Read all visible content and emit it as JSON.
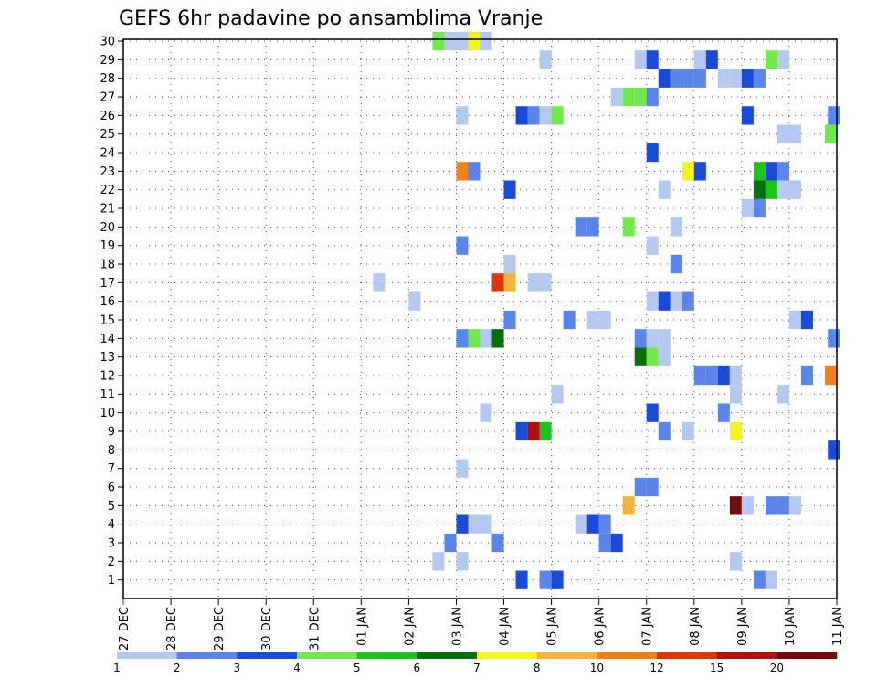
{
  "chart_data": {
    "type": "heatmap",
    "title": "GEFS 6hr padavine po ansamblima Vranje",
    "x_labels": [
      "27 DEC",
      "28 DEC",
      "29 DEC",
      "30 DEC",
      "31 DEC",
      "01 JAN",
      "02 JAN",
      "03 JAN",
      "04 JAN",
      "05 JAN",
      "06 JAN",
      "07 JAN",
      "08 JAN",
      "09 JAN",
      "10 JAN",
      "11 JAN"
    ],
    "y_labels": [
      "1",
      "2",
      "3",
      "4",
      "5",
      "6",
      "7",
      "8",
      "9",
      "10",
      "11",
      "12",
      "13",
      "14",
      "15",
      "16",
      "17",
      "18",
      "19",
      "20",
      "21",
      "22",
      "23",
      "24",
      "25",
      "26",
      "27",
      "28",
      "29",
      "30"
    ],
    "xlim": [
      0,
      60
    ],
    "ylim": [
      0,
      30
    ],
    "grid": true,
    "colorbar": {
      "labels": [
        "1",
        "2",
        "3",
        "4",
        "5",
        "6",
        "7",
        "8",
        "10",
        "12",
        "15",
        "20"
      ],
      "colors": [
        "#b5c8f0",
        "#5a85ea",
        "#1a4ad8",
        "#72e84c",
        "#1cc41c",
        "#0a6e0a",
        "#f5f51a",
        "#f5b43c",
        "#f58012",
        "#e0340e",
        "#b41010",
        "#780a0a"
      ]
    },
    "cells": [
      {
        "t": 26.5,
        "m": 30,
        "c": "#72e84c"
      },
      {
        "t": 27.5,
        "m": 30,
        "c": "#b5c8f0"
      },
      {
        "t": 28.5,
        "m": 30,
        "c": "#b5c8f0"
      },
      {
        "t": 29.5,
        "m": 30,
        "c": "#f5f51a"
      },
      {
        "t": 30.5,
        "m": 30,
        "c": "#b5c8f0"
      },
      {
        "t": 35.5,
        "m": 29,
        "c": "#b5c8f0"
      },
      {
        "t": 43.5,
        "m": 29,
        "c": "#b5c8f0"
      },
      {
        "t": 44.5,
        "m": 29,
        "c": "#1a4ad8"
      },
      {
        "t": 48.5,
        "m": 29,
        "c": "#b5c8f0"
      },
      {
        "t": 49.5,
        "m": 29,
        "c": "#1a4ad8"
      },
      {
        "t": 54.5,
        "m": 29,
        "c": "#72e84c"
      },
      {
        "t": 55.5,
        "m": 29,
        "c": "#b5c8f0"
      },
      {
        "t": 45.5,
        "m": 28,
        "c": "#1a4ad8"
      },
      {
        "t": 46.5,
        "m": 28,
        "c": "#5a85ea"
      },
      {
        "t": 47.5,
        "m": 28,
        "c": "#5a85ea"
      },
      {
        "t": 48.5,
        "m": 28,
        "c": "#5a85ea"
      },
      {
        "t": 50.5,
        "m": 28,
        "c": "#b5c8f0"
      },
      {
        "t": 51.5,
        "m": 28,
        "c": "#b5c8f0"
      },
      {
        "t": 52.5,
        "m": 28,
        "c": "#1a4ad8"
      },
      {
        "t": 53.5,
        "m": 28,
        "c": "#5a85ea"
      },
      {
        "t": 41.5,
        "m": 27,
        "c": "#b5c8f0"
      },
      {
        "t": 42.5,
        "m": 27,
        "c": "#72e84c"
      },
      {
        "t": 43.5,
        "m": 27,
        "c": "#72e84c"
      },
      {
        "t": 44.5,
        "m": 27,
        "c": "#5a85ea"
      },
      {
        "t": 28.5,
        "m": 26,
        "c": "#b5c8f0"
      },
      {
        "t": 33.5,
        "m": 26,
        "c": "#1a4ad8"
      },
      {
        "t": 34.5,
        "m": 26,
        "c": "#5a85ea"
      },
      {
        "t": 35.5,
        "m": 26,
        "c": "#b5c8f0"
      },
      {
        "t": 36.5,
        "m": 26,
        "c": "#72e84c"
      },
      {
        "t": 52.5,
        "m": 26,
        "c": "#1a4ad8"
      },
      {
        "t": 59.75,
        "m": 26,
        "c": "#5a85ea"
      },
      {
        "t": 55.5,
        "m": 25,
        "c": "#b5c8f0"
      },
      {
        "t": 56.5,
        "m": 25,
        "c": "#b5c8f0"
      },
      {
        "t": 59.5,
        "m": 25,
        "c": "#72e84c"
      },
      {
        "t": 44.5,
        "m": 24,
        "c": "#1a4ad8"
      },
      {
        "t": 28.5,
        "m": 23,
        "c": "#f58012"
      },
      {
        "t": 29.5,
        "m": 23,
        "c": "#5a85ea"
      },
      {
        "t": 47.5,
        "m": 23,
        "c": "#f5f51a"
      },
      {
        "t": 48.5,
        "m": 23,
        "c": "#1a4ad8"
      },
      {
        "t": 53.5,
        "m": 23,
        "c": "#1cc41c"
      },
      {
        "t": 54.5,
        "m": 23,
        "c": "#1a4ad8"
      },
      {
        "t": 55.5,
        "m": 23,
        "c": "#5a85ea"
      },
      {
        "t": 32.5,
        "m": 22,
        "c": "#1a4ad8"
      },
      {
        "t": 45.5,
        "m": 22,
        "c": "#b5c8f0"
      },
      {
        "t": 53.5,
        "m": 22,
        "c": "#0a6e0a"
      },
      {
        "t": 54.5,
        "m": 22,
        "c": "#1cc41c"
      },
      {
        "t": 55.5,
        "m": 22,
        "c": "#b5c8f0"
      },
      {
        "t": 56.5,
        "m": 22,
        "c": "#b5c8f0"
      },
      {
        "t": 52.5,
        "m": 21,
        "c": "#b5c8f0"
      },
      {
        "t": 53.5,
        "m": 21,
        "c": "#5a85ea"
      },
      {
        "t": 38.5,
        "m": 20,
        "c": "#5a85ea"
      },
      {
        "t": 39.5,
        "m": 20,
        "c": "#5a85ea"
      },
      {
        "t": 42.5,
        "m": 20,
        "c": "#72e84c"
      },
      {
        "t": 46.5,
        "m": 20,
        "c": "#b5c8f0"
      },
      {
        "t": 28.5,
        "m": 19,
        "c": "#5a85ea"
      },
      {
        "t": 44.5,
        "m": 19,
        "c": "#b5c8f0"
      },
      {
        "t": 32.5,
        "m": 18,
        "c": "#b5c8f0"
      },
      {
        "t": 46.5,
        "m": 18,
        "c": "#5a85ea"
      },
      {
        "t": 21.5,
        "m": 17,
        "c": "#b5c8f0"
      },
      {
        "t": 31.5,
        "m": 17,
        "c": "#e0340e"
      },
      {
        "t": 32.5,
        "m": 17,
        "c": "#f5b43c"
      },
      {
        "t": 34.5,
        "m": 17,
        "c": "#b5c8f0"
      },
      {
        "t": 35.5,
        "m": 17,
        "c": "#b5c8f0"
      },
      {
        "t": 24.5,
        "m": 16,
        "c": "#b5c8f0"
      },
      {
        "t": 44.5,
        "m": 16,
        "c": "#b5c8f0"
      },
      {
        "t": 45.5,
        "m": 16,
        "c": "#1a4ad8"
      },
      {
        "t": 46.5,
        "m": 16,
        "c": "#b5c8f0"
      },
      {
        "t": 47.5,
        "m": 16,
        "c": "#5a85ea"
      },
      {
        "t": 32.5,
        "m": 15,
        "c": "#5a85ea"
      },
      {
        "t": 37.5,
        "m": 15,
        "c": "#5a85ea"
      },
      {
        "t": 39.5,
        "m": 15,
        "c": "#b5c8f0"
      },
      {
        "t": 40.5,
        "m": 15,
        "c": "#b5c8f0"
      },
      {
        "t": 56.5,
        "m": 15,
        "c": "#b5c8f0"
      },
      {
        "t": 57.5,
        "m": 15,
        "c": "#1a4ad8"
      },
      {
        "t": 28.5,
        "m": 14,
        "c": "#5a85ea"
      },
      {
        "t": 29.5,
        "m": 14,
        "c": "#72e84c"
      },
      {
        "t": 30.5,
        "m": 14,
        "c": "#b5c8f0"
      },
      {
        "t": 31.5,
        "m": 14,
        "c": "#0a6e0a"
      },
      {
        "t": 43.5,
        "m": 14,
        "c": "#5a85ea"
      },
      {
        "t": 44.5,
        "m": 14,
        "c": "#b5c8f0"
      },
      {
        "t": 45.5,
        "m": 14,
        "c": "#b5c8f0"
      },
      {
        "t": 59.75,
        "m": 14,
        "c": "#5a85ea"
      },
      {
        "t": 43.5,
        "m": 13,
        "c": "#0a6e0a"
      },
      {
        "t": 44.5,
        "m": 13,
        "c": "#72e84c"
      },
      {
        "t": 45.5,
        "m": 13,
        "c": "#b5c8f0"
      },
      {
        "t": 48.5,
        "m": 12,
        "c": "#5a85ea"
      },
      {
        "t": 49.5,
        "m": 12,
        "c": "#5a85ea"
      },
      {
        "t": 50.5,
        "m": 12,
        "c": "#1a4ad8"
      },
      {
        "t": 51.5,
        "m": 12,
        "c": "#b5c8f0"
      },
      {
        "t": 57.5,
        "m": 12,
        "c": "#5a85ea"
      },
      {
        "t": 59.5,
        "m": 12,
        "c": "#f58012"
      },
      {
        "t": 36.5,
        "m": 11,
        "c": "#b5c8f0"
      },
      {
        "t": 51.5,
        "m": 11,
        "c": "#b5c8f0"
      },
      {
        "t": 55.5,
        "m": 11,
        "c": "#b5c8f0"
      },
      {
        "t": 30.5,
        "m": 10,
        "c": "#b5c8f0"
      },
      {
        "t": 44.5,
        "m": 10,
        "c": "#1a4ad8"
      },
      {
        "t": 50.5,
        "m": 10,
        "c": "#5a85ea"
      },
      {
        "t": 33.5,
        "m": 9,
        "c": "#1a4ad8"
      },
      {
        "t": 34.5,
        "m": 9,
        "c": "#b41010"
      },
      {
        "t": 35.5,
        "m": 9,
        "c": "#1cc41c"
      },
      {
        "t": 45.5,
        "m": 9,
        "c": "#5a85ea"
      },
      {
        "t": 47.5,
        "m": 9,
        "c": "#b5c8f0"
      },
      {
        "t": 51.5,
        "m": 9,
        "c": "#f5f51a"
      },
      {
        "t": 59.75,
        "m": 8,
        "c": "#1a4ad8"
      },
      {
        "t": 28.5,
        "m": 7,
        "c": "#b5c8f0"
      },
      {
        "t": 43.5,
        "m": 6,
        "c": "#5a85ea"
      },
      {
        "t": 44.5,
        "m": 6,
        "c": "#5a85ea"
      },
      {
        "t": 42.5,
        "m": 5,
        "c": "#f5b43c"
      },
      {
        "t": 51.5,
        "m": 5,
        "c": "#780a0a"
      },
      {
        "t": 52.5,
        "m": 5,
        "c": "#b5c8f0"
      },
      {
        "t": 54.5,
        "m": 5,
        "c": "#5a85ea"
      },
      {
        "t": 55.5,
        "m": 5,
        "c": "#5a85ea"
      },
      {
        "t": 56.5,
        "m": 5,
        "c": "#b5c8f0"
      },
      {
        "t": 28.5,
        "m": 4,
        "c": "#1a4ad8"
      },
      {
        "t": 29.5,
        "m": 4,
        "c": "#b5c8f0"
      },
      {
        "t": 30.5,
        "m": 4,
        "c": "#b5c8f0"
      },
      {
        "t": 38.5,
        "m": 4,
        "c": "#b5c8f0"
      },
      {
        "t": 39.5,
        "m": 4,
        "c": "#1a4ad8"
      },
      {
        "t": 40.5,
        "m": 4,
        "c": "#5a85ea"
      },
      {
        "t": 27.5,
        "m": 3,
        "c": "#5a85ea"
      },
      {
        "t": 31.5,
        "m": 3,
        "c": "#5a85ea"
      },
      {
        "t": 40.5,
        "m": 3,
        "c": "#5a85ea"
      },
      {
        "t": 41.5,
        "m": 3,
        "c": "#1a4ad8"
      },
      {
        "t": 26.5,
        "m": 2,
        "c": "#b5c8f0"
      },
      {
        "t": 28.5,
        "m": 2,
        "c": "#b5c8f0"
      },
      {
        "t": 51.5,
        "m": 2,
        "c": "#b5c8f0"
      },
      {
        "t": 33.5,
        "m": 1,
        "c": "#1a4ad8"
      },
      {
        "t": 35.5,
        "m": 1,
        "c": "#5a85ea"
      },
      {
        "t": 36.5,
        "m": 1,
        "c": "#1a4ad8"
      },
      {
        "t": 53.5,
        "m": 1,
        "c": "#5a85ea"
      },
      {
        "t": 54.5,
        "m": 1,
        "c": "#b5c8f0"
      }
    ]
  }
}
